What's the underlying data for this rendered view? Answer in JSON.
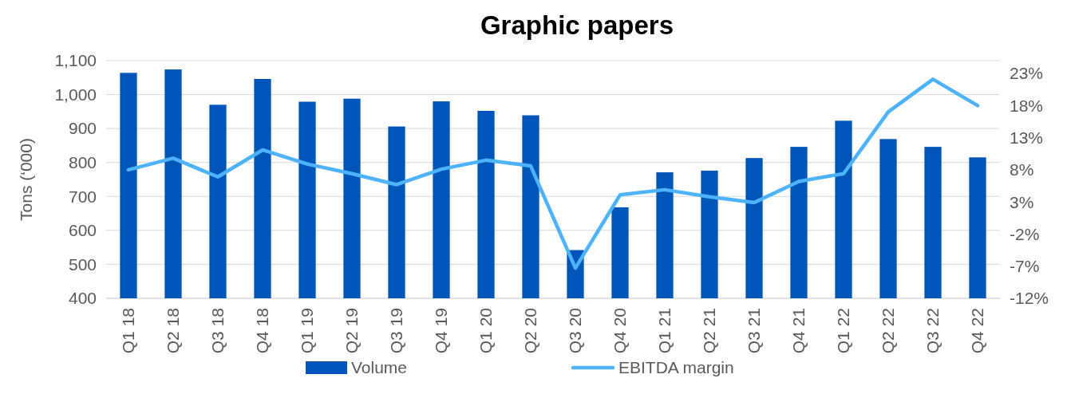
{
  "chart_data": {
    "type": "bar",
    "title": "Graphic papers",
    "ylabel": "Tons (‘000)",
    "categories": [
      "Q1 18",
      "Q2 18",
      "Q3 18",
      "Q4 18",
      "Q1 19",
      "Q2 19",
      "Q3 19",
      "Q4 19",
      "Q1 20",
      "Q2 20",
      "Q3 20",
      "Q4 20",
      "Q1 21",
      "Q2 21",
      "Q3 21",
      "Q4 21",
      "Q1 22",
      "Q2 22",
      "Q3 22",
      "Q4 22"
    ],
    "series": [
      {
        "name": "Volume",
        "color": "#0055b8",
        "values": [
          1064,
          1074,
          970,
          1046,
          979,
          988,
          906,
          980,
          952,
          939,
          542,
          668,
          771,
          776,
          813,
          846,
          923,
          869,
          846,
          815
        ]
      },
      {
        "name": "EBITDA margin",
        "type": "line",
        "axis": "y2",
        "color": "#4db3ff",
        "values": [
          8.0,
          9.8,
          6.9,
          11.1,
          8.9,
          7.4,
          5.7,
          8.1,
          9.5,
          8.6,
          -7.3,
          4.1,
          4.9,
          3.8,
          2.9,
          6.2,
          7.4,
          17.0,
          22.1,
          18.0
        ]
      }
    ],
    "ylim": [
      400,
      1100
    ],
    "yticks": [
      {
        "value": 400,
        "label": "400"
      },
      {
        "value": 500,
        "label": "500"
      },
      {
        "value": 600,
        "label": "600"
      },
      {
        "value": 700,
        "label": "700"
      },
      {
        "value": 800,
        "label": "800"
      },
      {
        "value": 900,
        "label": "900"
      },
      {
        "value": 1000,
        "label": "1,000"
      },
      {
        "value": 1100,
        "label": "1,100"
      }
    ],
    "y2lim": [
      -12,
      25
    ],
    "y2ticks": [
      {
        "value": -12,
        "label": "-12%"
      },
      {
        "value": -7,
        "label": "-7%"
      },
      {
        "value": -2,
        "label": "-2%"
      },
      {
        "value": 3,
        "label": "3%"
      },
      {
        "value": 8,
        "label": "8%"
      },
      {
        "value": 13,
        "label": "13%"
      },
      {
        "value": 18,
        "label": "18%"
      },
      {
        "value": 23,
        "label": "23%"
      }
    ],
    "grid": "y",
    "legend": "bottom",
    "marker": "none"
  }
}
